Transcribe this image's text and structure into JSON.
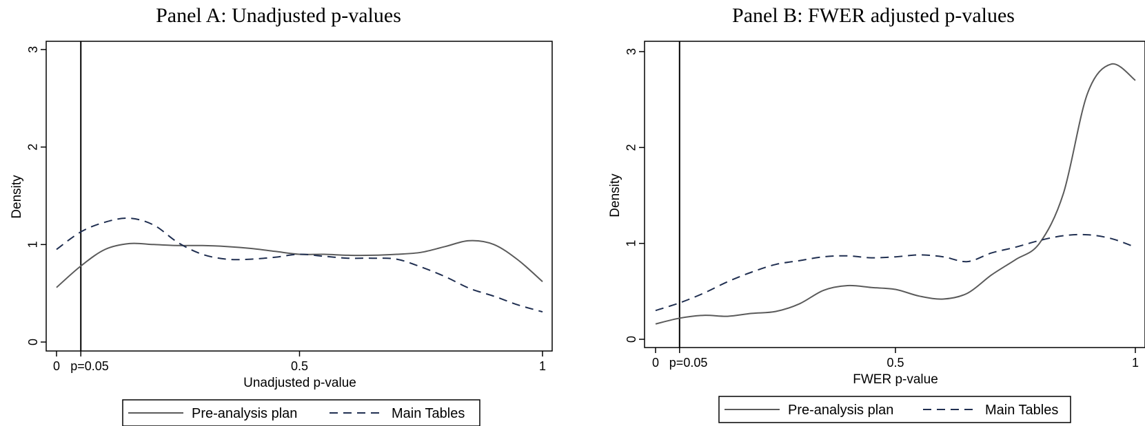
{
  "chart_data": [
    {
      "type": "line",
      "title": "Panel A: Unadjusted p-values",
      "xlabel": "Unadjusted p-value",
      "ylabel": "Density",
      "xlim": [
        0,
        1
      ],
      "ylim": [
        0,
        3
      ],
      "x_ticks": [
        {
          "value": 0,
          "label": "0"
        },
        {
          "value": 0.05,
          "label": "p=0.05"
        },
        {
          "value": 0.5,
          "label": "0.5"
        },
        {
          "value": 1,
          "label": "1"
        }
      ],
      "y_ticks": [
        {
          "value": 0,
          "label": "0"
        },
        {
          "value": 1,
          "label": "1"
        },
        {
          "value": 2,
          "label": "2"
        },
        {
          "value": 3,
          "label": "3"
        }
      ],
      "vline": 0.05,
      "grid": false,
      "legend_position": "bottom",
      "series": [
        {
          "name": "Pre-analysis plan",
          "style": "solid",
          "color": "#5a5a5a",
          "points": [
            [
              0,
              0.56
            ],
            [
              0.05,
              0.78
            ],
            [
              0.1,
              0.95
            ],
            [
              0.15,
              1.01
            ],
            [
              0.2,
              1.0
            ],
            [
              0.25,
              0.99
            ],
            [
              0.3,
              0.99
            ],
            [
              0.35,
              0.98
            ],
            [
              0.4,
              0.96
            ],
            [
              0.45,
              0.93
            ],
            [
              0.5,
              0.9
            ],
            [
              0.55,
              0.9
            ],
            [
              0.6,
              0.89
            ],
            [
              0.65,
              0.89
            ],
            [
              0.7,
              0.9
            ],
            [
              0.75,
              0.92
            ],
            [
              0.8,
              0.98
            ],
            [
              0.85,
              1.04
            ],
            [
              0.9,
              1.0
            ],
            [
              0.95,
              0.84
            ],
            [
              1.0,
              0.62
            ]
          ]
        },
        {
          "name": "Main Tables",
          "style": "dashed",
          "color": "#1f2e50",
          "points": [
            [
              0,
              0.95
            ],
            [
              0.05,
              1.13
            ],
            [
              0.1,
              1.23
            ],
            [
              0.15,
              1.27
            ],
            [
              0.2,
              1.2
            ],
            [
              0.25,
              1.02
            ],
            [
              0.3,
              0.9
            ],
            [
              0.35,
              0.85
            ],
            [
              0.4,
              0.85
            ],
            [
              0.45,
              0.87
            ],
            [
              0.5,
              0.9
            ],
            [
              0.55,
              0.88
            ],
            [
              0.6,
              0.86
            ],
            [
              0.65,
              0.86
            ],
            [
              0.7,
              0.85
            ],
            [
              0.75,
              0.77
            ],
            [
              0.8,
              0.67
            ],
            [
              0.85,
              0.55
            ],
            [
              0.9,
              0.47
            ],
            [
              0.95,
              0.38
            ],
            [
              1.0,
              0.31
            ]
          ]
        }
      ]
    },
    {
      "type": "line",
      "title": "Panel B: FWER adjusted p-values",
      "xlabel": "FWER p-value",
      "ylabel": "Density",
      "xlim": [
        0,
        1
      ],
      "ylim": [
        0,
        3
      ],
      "x_ticks": [
        {
          "value": 0,
          "label": "0"
        },
        {
          "value": 0.05,
          "label": "p=0.05"
        },
        {
          "value": 0.5,
          "label": "0.5"
        },
        {
          "value": 1,
          "label": "1"
        }
      ],
      "y_ticks": [
        {
          "value": 0,
          "label": "0"
        },
        {
          "value": 1,
          "label": "1"
        },
        {
          "value": 2,
          "label": "2"
        },
        {
          "value": 3,
          "label": "3"
        }
      ],
      "vline": 0.05,
      "grid": false,
      "legend_position": "bottom",
      "series": [
        {
          "name": "Pre-analysis plan",
          "style": "solid",
          "color": "#5a5a5a",
          "points": [
            [
              0,
              0.16
            ],
            [
              0.05,
              0.22
            ],
            [
              0.1,
              0.25
            ],
            [
              0.15,
              0.24
            ],
            [
              0.2,
              0.27
            ],
            [
              0.25,
              0.29
            ],
            [
              0.3,
              0.37
            ],
            [
              0.35,
              0.51
            ],
            [
              0.4,
              0.56
            ],
            [
              0.45,
              0.54
            ],
            [
              0.5,
              0.52
            ],
            [
              0.55,
              0.45
            ],
            [
              0.6,
              0.42
            ],
            [
              0.65,
              0.48
            ],
            [
              0.7,
              0.67
            ],
            [
              0.75,
              0.83
            ],
            [
              0.8,
              1.0
            ],
            [
              0.85,
              1.52
            ],
            [
              0.9,
              2.56
            ],
            [
              0.95,
              2.87
            ],
            [
              1.0,
              2.7
            ]
          ]
        },
        {
          "name": "Main Tables",
          "style": "dashed",
          "color": "#1f2e50",
          "points": [
            [
              0,
              0.3
            ],
            [
              0.05,
              0.38
            ],
            [
              0.1,
              0.48
            ],
            [
              0.15,
              0.6
            ],
            [
              0.2,
              0.7
            ],
            [
              0.25,
              0.78
            ],
            [
              0.3,
              0.82
            ],
            [
              0.35,
              0.86
            ],
            [
              0.4,
              0.87
            ],
            [
              0.45,
              0.85
            ],
            [
              0.5,
              0.86
            ],
            [
              0.55,
              0.88
            ],
            [
              0.6,
              0.86
            ],
            [
              0.65,
              0.81
            ],
            [
              0.7,
              0.9
            ],
            [
              0.75,
              0.96
            ],
            [
              0.8,
              1.03
            ],
            [
              0.85,
              1.08
            ],
            [
              0.9,
              1.09
            ],
            [
              0.95,
              1.05
            ],
            [
              1.0,
              0.96
            ]
          ]
        }
      ]
    }
  ]
}
